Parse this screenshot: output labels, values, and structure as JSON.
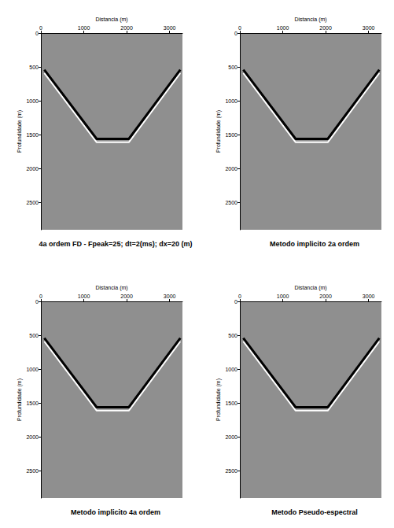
{
  "chart_data": [
    {
      "type": "line",
      "title": "4a ordem FD - Fpeak=25; dt=2(ms); dx=20 (m)",
      "x_label": "Distancia (m)",
      "y_label": "Profundidade (m)",
      "xlim": [
        0,
        3300
      ],
      "ylim": [
        0,
        2900
      ],
      "xticks": [
        0,
        1000,
        2000,
        3000
      ],
      "yticks": [
        0,
        500,
        1000,
        1500,
        2000,
        2500
      ],
      "grid": false,
      "x": [
        80,
        1300,
        2050,
        3250
      ],
      "series": [
        {
          "color": "#000000",
          "values": [
            540,
            1560,
            1560,
            540
          ]
        },
        {
          "color": "#ffffff",
          "values": [
            590,
            1610,
            1610,
            590
          ]
        }
      ]
    },
    {
      "type": "line",
      "title": "Metodo implicito 2a ordem",
      "x_label": "Distancia (m)",
      "y_label": "Profundidade (m)",
      "xlim": [
        0,
        3300
      ],
      "ylim": [
        0,
        2900
      ],
      "xticks": [
        0,
        1000,
        2000,
        3000
      ],
      "yticks": [
        0,
        500,
        1000,
        1500,
        2000,
        2500
      ],
      "grid": false,
      "x": [
        80,
        1300,
        2050,
        3250
      ],
      "series": [
        {
          "color": "#000000",
          "values": [
            540,
            1560,
            1560,
            540
          ]
        },
        {
          "color": "#ffffff",
          "values": [
            590,
            1610,
            1610,
            590
          ]
        }
      ]
    },
    {
      "type": "line",
      "title": "Metodo implicito 4a ordem",
      "x_label": "Distancia (m)",
      "y_label": "Profundidade (m)",
      "xlim": [
        0,
        3300
      ],
      "ylim": [
        0,
        2900
      ],
      "xticks": [
        0,
        1000,
        2000,
        3000
      ],
      "yticks": [
        0,
        500,
        1000,
        1500,
        2000,
        2500
      ],
      "grid": false,
      "x": [
        80,
        1300,
        2050,
        3250
      ],
      "series": [
        {
          "color": "#000000",
          "values": [
            540,
            1560,
            1560,
            540
          ]
        },
        {
          "color": "#ffffff",
          "values": [
            590,
            1610,
            1610,
            590
          ]
        }
      ]
    },
    {
      "type": "line",
      "title": "Metodo Pseudo-espectral",
      "x_label": "Distancia (m)",
      "y_label": "Profundidade (m)",
      "xlim": [
        0,
        3300
      ],
      "ylim": [
        0,
        2900
      ],
      "xticks": [
        0,
        1000,
        2000,
        3000
      ],
      "yticks": [
        0,
        500,
        1000,
        1500,
        2000,
        2500
      ],
      "grid": false,
      "x": [
        80,
        1300,
        2050,
        3250
      ],
      "series": [
        {
          "color": "#000000",
          "values": [
            540,
            1560,
            1560,
            540
          ]
        },
        {
          "color": "#ffffff",
          "values": [
            590,
            1610,
            1610,
            590
          ]
        }
      ]
    }
  ]
}
